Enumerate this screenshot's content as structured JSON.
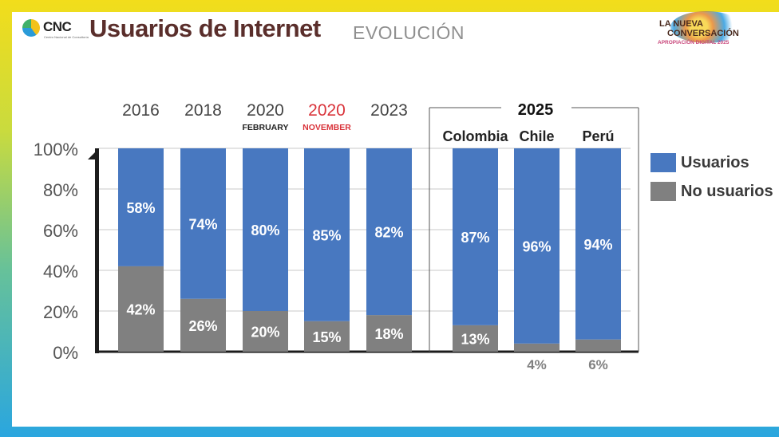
{
  "header": {
    "logo_text": "CNC",
    "logo_subtext": "Centro Nacional de Consultoría",
    "title": "Usuarios de Internet",
    "subtitle": "EVOLUCIÓN",
    "brand_line1": "LA NUEVA",
    "brand_line2": "CONVERSACIÓN",
    "brand_line3": "APROPIACIÓN DIGITAL 2025"
  },
  "colors": {
    "usuarios": "#4878c0",
    "no_usuarios": "#808080",
    "title": "#5a2e2b",
    "highlight": "#d9333a"
  },
  "chart_data": {
    "type": "bar",
    "stacked": true,
    "percent_stacked": true,
    "categories": [
      "2016",
      "2018",
      "2020",
      "2020",
      "2023",
      "Colombia",
      "Chile",
      "Perú"
    ],
    "category_sublabels": [
      "",
      "",
      "FEBRUARY",
      "NOVEMBER",
      "",
      "",
      "",
      ""
    ],
    "group_label": "2025",
    "group_members": [
      "Colombia",
      "Chile",
      "Perú"
    ],
    "highlighted_category_index": 3,
    "series": [
      {
        "name": "No usuarios",
        "values": [
          42,
          26,
          20,
          15,
          18,
          13,
          4,
          6
        ]
      },
      {
        "name": "Usuarios",
        "values": [
          58,
          74,
          80,
          85,
          82,
          87,
          96,
          94
        ]
      }
    ],
    "value_labels": {
      "usuarios": [
        "58%",
        "74%",
        "80%",
        "85%",
        "82%",
        "87%",
        "96%",
        "94%"
      ],
      "no_usuarios": [
        "42%",
        "26%",
        "20%",
        "15%",
        "18%",
        "13%",
        "4%",
        "6%"
      ]
    },
    "ylim": [
      0,
      100
    ],
    "yticks": [
      0,
      20,
      40,
      60,
      80,
      100
    ],
    "ytick_labels": [
      "0%",
      "20%",
      "40%",
      "60%",
      "80%",
      "100%"
    ],
    "grid": true,
    "legend": [
      "Usuarios",
      "No usuarios"
    ],
    "legend_position": "right"
  }
}
